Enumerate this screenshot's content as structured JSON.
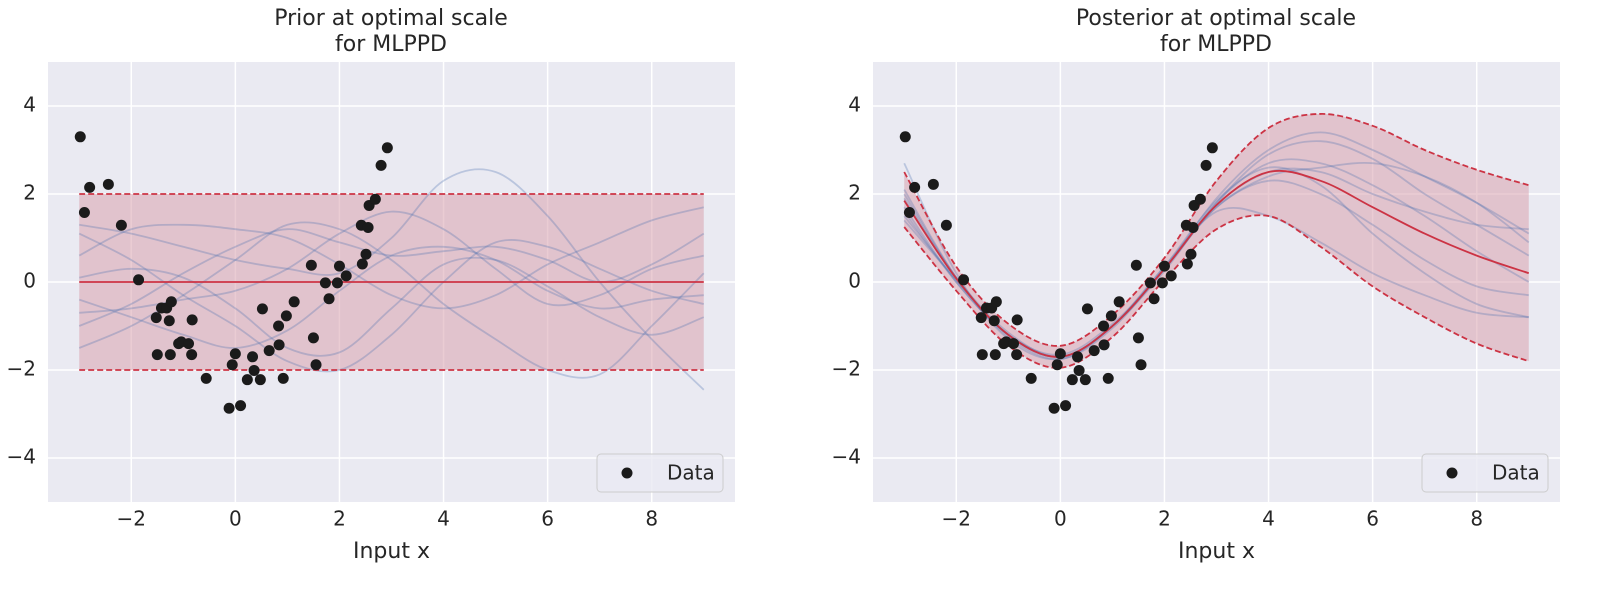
{
  "chart_data": [
    {
      "type": "line",
      "title": "Prior at optimal scale\nfor MLPPD",
      "xlabel": "Input x",
      "xlim": [
        -3.6,
        9.6
      ],
      "ylim": [
        -5,
        5
      ],
      "xticks": [
        {
          "value": -2,
          "label": "−2"
        },
        0,
        2,
        4,
        6,
        8
      ],
      "yticks": [
        {
          "value": -4,
          "label": "−4"
        },
        {
          "value": -2,
          "label": "−2"
        },
        0,
        2,
        4
      ],
      "grid": true,
      "legend": "lower right",
      "x": [
        -3,
        -2,
        -1,
        0,
        1,
        2,
        3,
        4,
        5,
        6,
        7,
        8,
        9
      ],
      "band": {
        "color": "#d9a3ae",
        "line_color": "#cc3344",
        "upper": [
          2,
          2,
          2,
          2,
          2,
          2,
          2,
          2,
          2,
          2,
          2,
          2,
          2
        ],
        "lower": [
          -2,
          -2,
          -2,
          -2,
          -2,
          -2,
          -2,
          -2,
          -2,
          -2,
          -2,
          -2,
          -2
        ]
      },
      "mean": {
        "color": "#cc3344",
        "values": [
          0,
          0,
          0,
          0,
          0,
          0,
          0,
          0,
          0,
          0,
          0,
          0,
          0
        ]
      },
      "samples": {
        "color": "#4c72b0",
        "values": [
          [
            1.3,
            1.1,
            0.8,
            0.5,
            0.3,
            0.2,
            1.0,
            2.3,
            2.5,
            1.5,
            0.0,
            -1.3,
            -2.45
          ],
          [
            -1.5,
            -1.0,
            -0.3,
            0.5,
            1.3,
            1.2,
            0.5,
            -0.5,
            -1.3,
            -2.0,
            -2.1,
            -1.0,
            0.2
          ],
          [
            0.6,
            1.2,
            1.3,
            1.2,
            1.0,
            0.4,
            -0.3,
            -0.6,
            -0.3,
            0.4,
            0.9,
            1.4,
            1.7
          ],
          [
            -0.4,
            -0.8,
            -1.2,
            -1.5,
            -1.1,
            -0.2,
            0.6,
            0.8,
            0.5,
            -0.2,
            -0.6,
            -0.4,
            -0.3
          ],
          [
            1.1,
            0.5,
            -0.3,
            -1.0,
            -1.8,
            -2.0,
            -1.2,
            0.0,
            0.9,
            0.8,
            0.3,
            -0.2,
            -0.5
          ],
          [
            -1.0,
            -0.5,
            0.2,
            0.8,
            1.2,
            0.9,
            0.6,
            0.7,
            0.8,
            0.5,
            0.0,
            0.4,
            1.1
          ],
          [
            0.1,
            0.3,
            0.1,
            -0.6,
            -1.5,
            -1.6,
            -0.6,
            0.4,
            0.5,
            -0.1,
            -0.8,
            -1.2,
            -0.8
          ],
          [
            -0.7,
            -0.6,
            -0.4,
            -0.2,
            0.3,
            1.1,
            1.6,
            1.2,
            0.3,
            -0.5,
            -0.3,
            0.3,
            0.6
          ]
        ]
      },
      "scatter": {
        "name": "Data",
        "color": "#1b1b1b",
        "x": [
          -2.98,
          -2.9,
          -2.8,
          -2.44,
          -2.19,
          -1.86,
          -1.52,
          -1.5,
          -1.42,
          -1.32,
          -1.27,
          -1.25,
          -1.23,
          -1.09,
          -1.04,
          -0.9,
          -0.84,
          -0.83,
          -0.56,
          -0.12,
          -0.06,
          0,
          0.1,
          0.23,
          0.33,
          0.36,
          0.48,
          0.52,
          0.65,
          0.83,
          0.84,
          0.92,
          0.98,
          1.13,
          1.46,
          1.5,
          1.55,
          1.73,
          1.8,
          1.96,
          2.0,
          2.13,
          2.42,
          2.44,
          2.51,
          2.57,
          2.55,
          2.69,
          2.8,
          2.92
        ],
        "y": [
          3.3,
          1.58,
          2.15,
          2.22,
          1.29,
          0.05,
          -0.81,
          -1.65,
          -0.59,
          -0.59,
          -0.88,
          -1.65,
          -0.45,
          -1.4,
          -1.36,
          -1.4,
          -1.65,
          -0.86,
          -2.19,
          -2.87,
          -1.88,
          -1.63,
          -2.81,
          -2.22,
          -1.7,
          -2.01,
          -2.22,
          -0.61,
          -1.56,
          -1.0,
          -1.43,
          -2.19,
          -0.77,
          -0.45,
          0.38,
          -1.27,
          -1.88,
          -0.02,
          -0.38,
          -0.02,
          0.36,
          0.14,
          1.29,
          0.41,
          0.63,
          1.74,
          1.24,
          1.88,
          2.65,
          3.05
        ]
      }
    },
    {
      "type": "line",
      "title": "Posterior at optimal scale\nfor MLPPD",
      "xlabel": "Input x",
      "xlim": [
        -3.6,
        9.6
      ],
      "ylim": [
        -5,
        5
      ],
      "xticks": [
        {
          "value": -2,
          "label": "−2"
        },
        0,
        2,
        4,
        6,
        8
      ],
      "yticks": [
        {
          "value": -4,
          "label": "−4"
        },
        {
          "value": -2,
          "label": "−2"
        },
        0,
        2,
        4
      ],
      "grid": true,
      "legend": "lower right",
      "x": [
        -3,
        -2,
        -1,
        0,
        1,
        2,
        3,
        4,
        5,
        6,
        7,
        8,
        9
      ],
      "band": {
        "color": "#d9a3ae",
        "line_color": "#cc3344",
        "upper": [
          2.5,
          0.35,
          -0.95,
          -1.45,
          -0.75,
          0.55,
          2.3,
          3.5,
          3.82,
          3.55,
          3.0,
          2.55,
          2.2
        ],
        "lower": [
          1.25,
          -0.2,
          -1.45,
          -1.95,
          -1.25,
          0.05,
          1.2,
          1.5,
          0.8,
          -0.1,
          -0.8,
          -1.4,
          -1.8
        ]
      },
      "mean": {
        "color": "#cc3344",
        "values": [
          1.85,
          0.08,
          -1.2,
          -1.7,
          -1.0,
          0.3,
          1.75,
          2.5,
          2.3,
          1.7,
          1.1,
          0.6,
          0.2
        ]
      },
      "samples": {
        "color": "#4c72b0",
        "values": [
          [
            2.7,
            0.2,
            -1.3,
            -1.75,
            -1.0,
            0.35,
            1.6,
            1.5,
            0.9,
            0.2,
            -0.3,
            -0.7,
            -0.8
          ],
          [
            1.6,
            0.0,
            -1.2,
            -1.65,
            -0.95,
            0.3,
            1.9,
            3.0,
            3.4,
            3.0,
            2.4,
            1.8,
            1.1
          ],
          [
            1.9,
            0.1,
            -1.15,
            -1.7,
            -1.0,
            0.25,
            1.8,
            2.7,
            2.7,
            2.2,
            1.5,
            0.7,
            0.0
          ],
          [
            1.4,
            0.05,
            -1.25,
            -1.75,
            -1.05,
            0.3,
            1.7,
            2.4,
            2.6,
            2.7,
            2.4,
            1.8,
            0.9
          ],
          [
            2.0,
            0.1,
            -1.2,
            -1.7,
            -1.0,
            0.3,
            1.7,
            2.3,
            2.0,
            1.3,
            0.5,
            -0.1,
            -0.3
          ],
          [
            1.7,
            0.0,
            -1.2,
            -1.7,
            -1.0,
            0.35,
            1.85,
            2.6,
            2.2,
            1.1,
            0.2,
            -0.5,
            -0.8
          ],
          [
            2.1,
            0.1,
            -1.2,
            -1.7,
            -1.0,
            0.3,
            1.8,
            2.9,
            3.2,
            2.8,
            2.0,
            1.3,
            0.6
          ],
          [
            1.5,
            0.05,
            -1.2,
            -1.7,
            -1.0,
            0.3,
            1.75,
            2.5,
            2.5,
            2.0,
            1.6,
            1.3,
            1.2
          ]
        ]
      },
      "scatter": {
        "name": "Data",
        "color": "#1b1b1b",
        "x": [
          -2.98,
          -2.9,
          -2.8,
          -2.44,
          -2.19,
          -1.86,
          -1.52,
          -1.5,
          -1.42,
          -1.32,
          -1.27,
          -1.25,
          -1.23,
          -1.09,
          -1.04,
          -0.9,
          -0.84,
          -0.83,
          -0.56,
          -0.12,
          -0.06,
          0,
          0.1,
          0.23,
          0.33,
          0.36,
          0.48,
          0.52,
          0.65,
          0.83,
          0.84,
          0.92,
          0.98,
          1.13,
          1.46,
          1.5,
          1.55,
          1.73,
          1.8,
          1.96,
          2.0,
          2.13,
          2.42,
          2.44,
          2.51,
          2.57,
          2.55,
          2.69,
          2.8,
          2.92
        ],
        "y": [
          3.3,
          1.58,
          2.15,
          2.22,
          1.29,
          0.05,
          -0.81,
          -1.65,
          -0.59,
          -0.59,
          -0.88,
          -1.65,
          -0.45,
          -1.4,
          -1.36,
          -1.4,
          -1.65,
          -0.86,
          -2.19,
          -2.87,
          -1.88,
          -1.63,
          -2.81,
          -2.22,
          -1.7,
          -2.01,
          -2.22,
          -0.61,
          -1.56,
          -1.0,
          -1.43,
          -2.19,
          -0.77,
          -0.45,
          0.38,
          -1.27,
          -1.88,
          -0.02,
          -0.38,
          -0.02,
          0.36,
          0.14,
          1.29,
          0.41,
          0.63,
          1.74,
          1.24,
          1.88,
          2.65,
          3.05
        ]
      }
    }
  ]
}
